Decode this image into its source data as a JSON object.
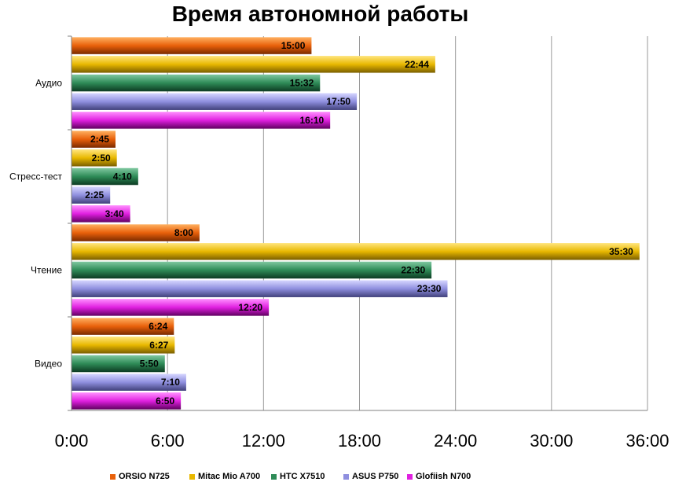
{
  "chart_data": {
    "type": "bar",
    "orientation": "horizontal",
    "title": "Время автономной работы",
    "xlabel": "",
    "ylabel": "",
    "xlim": [
      "0:00",
      "36:00"
    ],
    "xlim_hours": [
      0,
      36
    ],
    "x_ticks": [
      "0:00",
      "6:00",
      "12:00",
      "18:00",
      "24:00",
      "30:00",
      "36:00"
    ],
    "grid": "vertical",
    "legend_position": "bottom",
    "categories": [
      "Аудио",
      "Стресс-тест",
      "Чтение",
      "Видео"
    ],
    "series": [
      {
        "name": "ORSIO N725",
        "color": "#e8600a",
        "labels": [
          "15:00",
          "2:45",
          "8:00",
          "6:24"
        ],
        "values_hours": [
          15.0,
          2.75,
          8.0,
          6.4
        ]
      },
      {
        "name": "Mitac Mio A700",
        "color": "#e8b800",
        "labels": [
          "22:44",
          "2:50",
          "35:30",
          "6:27"
        ],
        "values_hours": [
          22.7333,
          2.8333,
          35.5,
          6.45
        ]
      },
      {
        "name": "HTC X7510",
        "color": "#2e8b57",
        "labels": [
          "15:32",
          "4:10",
          "22:30",
          "5:50"
        ],
        "values_hours": [
          15.5333,
          4.1667,
          22.5,
          5.8333
        ]
      },
      {
        "name": "ASUS P750",
        "color": "#8f8fdf",
        "labels": [
          "17:50",
          "2:25",
          "23:30",
          "7:10"
        ],
        "values_hours": [
          17.8333,
          2.4167,
          23.5,
          7.1667
        ]
      },
      {
        "name": "Glofiish N700",
        "color": "#e020e0",
        "labels": [
          "16:10",
          "3:40",
          "12:20",
          "6:50"
        ],
        "values_hours": [
          16.1667,
          3.6667,
          12.3333,
          6.8333
        ]
      }
    ]
  }
}
